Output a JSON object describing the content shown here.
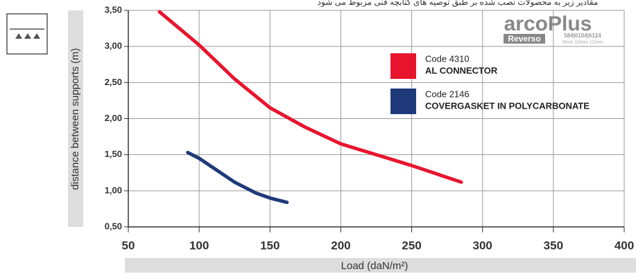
{
  "chart_data": {
    "type": "line",
    "subtitle": "مقادیر زیر به محصولات نصب شده بر طبق توصیه های کتابچه فنی مربوط می شود",
    "brand": {
      "name": "arcoPlus",
      "line": "Reverso",
      "codes": "584|6104|6124",
      "sizes": "8mm 10mm 12mm"
    },
    "x_label": "Load (daN/m²)",
    "y_label": "distance between supports (m)",
    "xlim": [
      50,
      400
    ],
    "xticks": [
      50,
      100,
      150,
      200,
      250,
      300,
      350,
      400
    ],
    "ylim": [
      0.5,
      3.5
    ],
    "yticks": [
      {
        "value": 0.5,
        "label": "0,50"
      },
      {
        "value": 1.0,
        "label": "1,00"
      },
      {
        "value": 1.5,
        "label": "1,50"
      },
      {
        "value": 2.0,
        "label": "2,00"
      },
      {
        "value": 2.5,
        "label": "2,50"
      },
      {
        "value": 3.0,
        "label": "3,00"
      },
      {
        "value": 3.5,
        "label": "3,50"
      }
    ],
    "grid": true,
    "series": [
      {
        "name": "Code 4310",
        "description": "AL CONNECTOR",
        "color": "#e8142d",
        "x": [
          72,
          100,
          125,
          150,
          175,
          200,
          225,
          250,
          285
        ],
        "values": [
          3.48,
          3.02,
          2.55,
          2.15,
          1.88,
          1.65,
          1.5,
          1.35,
          1.12
        ]
      },
      {
        "name": "Code 2146",
        "description": "COVERGASKET IN POLYCARBONATE",
        "color": "#1f3a7a",
        "x": [
          92,
          100,
          125,
          140,
          150,
          162
        ],
        "values": [
          1.53,
          1.45,
          1.12,
          0.97,
          0.9,
          0.84
        ]
      }
    ]
  }
}
